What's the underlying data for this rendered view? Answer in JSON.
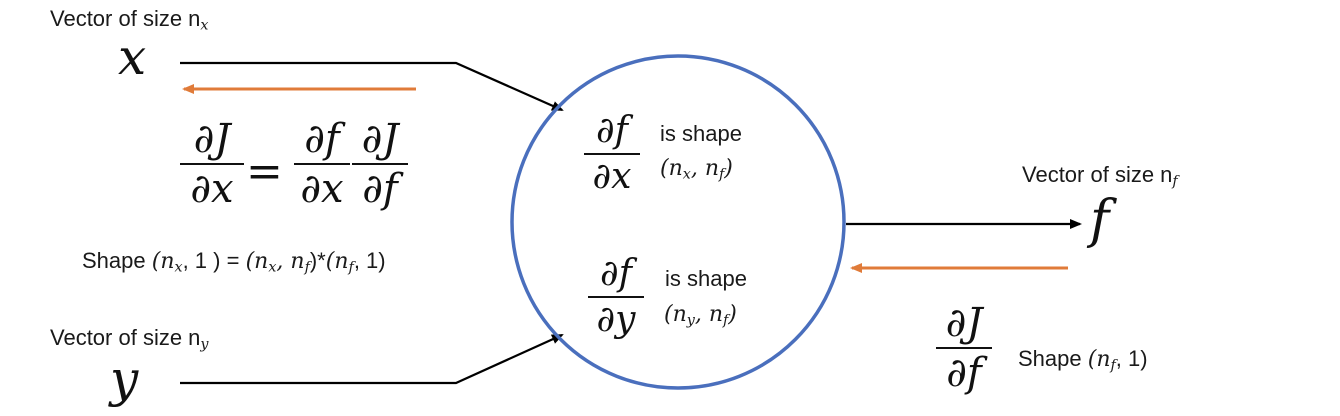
{
  "inputs": {
    "x": {
      "caption": "Vector of size n",
      "caption_sub": "x",
      "symbol": "x"
    },
    "y": {
      "caption": "Vector of size n",
      "caption_sub": "y",
      "symbol": "y"
    }
  },
  "output": {
    "caption": "Vector of size n",
    "caption_sub": "f",
    "symbol": "f"
  },
  "node": {
    "df_dx": {
      "num": "∂f",
      "den": "∂x",
      "is_shape": "is shape",
      "tuple": "(n",
      "tuple_sub1": "x",
      "tuple_mid": ", n",
      "tuple_sub2": "f",
      "tuple_end": ")"
    },
    "df_dy": {
      "num": "∂f",
      "den": "∂y",
      "is_shape": "is shape",
      "tuple": "(n",
      "tuple_sub1": "y",
      "tuple_mid": ", n",
      "tuple_sub2": "f",
      "tuple_end": ")"
    }
  },
  "chain_rule": {
    "lhs_num": "∂J",
    "lhs_den": "∂x",
    "equals": "=",
    "r1_num": "∂f",
    "r1_den": "∂x",
    "r2_num": "∂J",
    "r2_den": "∂f"
  },
  "shape_line": {
    "prefix": "Shape ",
    "p1": "(n",
    "p1_sub": "x",
    "p1_end": ", 1 ) = ",
    "p2": "(n",
    "p2_sub": "x",
    "p2_mid": ", n",
    "p2_sub2": "f",
    "p2_end": ")*",
    "p3": "(n",
    "p3_sub": "f",
    "p3_end": ", 1)"
  },
  "grad_out": {
    "num": "∂J",
    "den": "∂f",
    "shape_prefix": "Shape ",
    "shape": "(n",
    "shape_sub": "f",
    "shape_end": ", 1)"
  },
  "colors": {
    "forward": "#000000",
    "backward": "#e07b39",
    "node_stroke": "#4a6fbd"
  }
}
